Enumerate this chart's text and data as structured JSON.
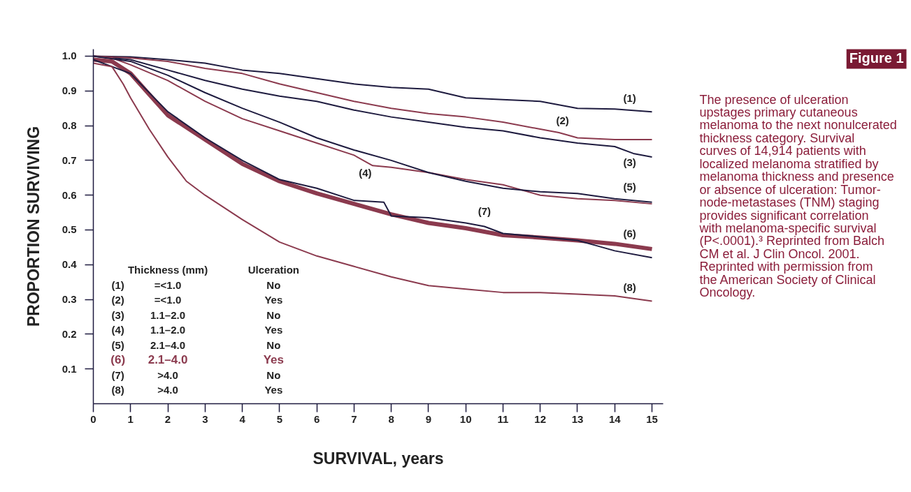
{
  "chart_data": {
    "type": "line",
    "title": "Figure 1",
    "xlabel": "SURVIVAL, years",
    "ylabel": "PROPORTION SURVIVING",
    "xlim": [
      0,
      15.3
    ],
    "ylim": [
      0,
      1.02
    ],
    "xticks": [
      0,
      1,
      2,
      3,
      4,
      5,
      6,
      7,
      8,
      9,
      10,
      11,
      12,
      13,
      14,
      15
    ],
    "yticks": [
      {
        "value": 0.1,
        "label": "0.1"
      },
      {
        "value": 0.2,
        "label": "0.2"
      },
      {
        "value": 0.3,
        "label": "0.3"
      },
      {
        "value": 0.4,
        "label": "0.4"
      },
      {
        "value": 0.5,
        "label": "0.5"
      },
      {
        "value": 0.6,
        "label": "0.6"
      },
      {
        "value": 0.7,
        "label": "0.7"
      },
      {
        "value": 0.8,
        "label": "0.8"
      },
      {
        "value": 0.9,
        "label": "0.9"
      },
      {
        "value": 1.0,
        "label": "1.0"
      }
    ],
    "grid": false,
    "marker": "none",
    "line_style": "solid",
    "series": [
      {
        "name": "(1)",
        "color": "#1e1b3f",
        "x": [
          0,
          1,
          2,
          3,
          4,
          5,
          6,
          7,
          8,
          9,
          10,
          11,
          12,
          13,
          14,
          15
        ],
        "values": [
          1.0,
          0.998,
          0.99,
          0.98,
          0.96,
          0.95,
          0.935,
          0.92,
          0.91,
          0.905,
          0.88,
          0.875,
          0.87,
          0.85,
          0.848,
          0.84
        ]
      },
      {
        "name": "(2)",
        "color": "#8b3a4e",
        "x": [
          0,
          1,
          2,
          3,
          4,
          5,
          6,
          7,
          8,
          9,
          10,
          11,
          12,
          12.5,
          13,
          14,
          15
        ],
        "values": [
          1.0,
          0.995,
          0.985,
          0.965,
          0.95,
          0.92,
          0.895,
          0.87,
          0.85,
          0.835,
          0.825,
          0.81,
          0.79,
          0.78,
          0.765,
          0.76,
          0.76
        ]
      },
      {
        "name": "(3)",
        "color": "#1e1b3f",
        "x": [
          0,
          1,
          2,
          3,
          4,
          5,
          6,
          7,
          8,
          9,
          10,
          11,
          12,
          13,
          14,
          14.5,
          15
        ],
        "values": [
          1.0,
          0.99,
          0.96,
          0.93,
          0.905,
          0.885,
          0.87,
          0.845,
          0.825,
          0.81,
          0.795,
          0.785,
          0.765,
          0.75,
          0.74,
          0.72,
          0.71
        ]
      },
      {
        "name": "(4)",
        "color": "#8b3a4e",
        "x": [
          0,
          0.5,
          1,
          2,
          3,
          4,
          5,
          6,
          7,
          7.5,
          8,
          9,
          10,
          11,
          12,
          13,
          14,
          15
        ],
        "values": [
          1.0,
          0.995,
          0.975,
          0.93,
          0.87,
          0.82,
          0.785,
          0.75,
          0.715,
          0.685,
          0.68,
          0.665,
          0.645,
          0.63,
          0.6,
          0.59,
          0.585,
          0.575
        ]
      },
      {
        "name": "(5)",
        "color": "#1e1b3f",
        "x": [
          0,
          1,
          2,
          3,
          4,
          5,
          6,
          7,
          8,
          9,
          10,
          11,
          12,
          13,
          14,
          15
        ],
        "values": [
          1.0,
          0.985,
          0.945,
          0.895,
          0.85,
          0.81,
          0.765,
          0.73,
          0.7,
          0.665,
          0.64,
          0.62,
          0.61,
          0.605,
          0.59,
          0.58
        ]
      },
      {
        "name": "(6)",
        "color": "#8b3a4e",
        "x": [
          0,
          0.5,
          1,
          1.5,
          2,
          3,
          4,
          5,
          6,
          7,
          8,
          9,
          10,
          11,
          12,
          13,
          14,
          15
        ],
        "values": [
          0.99,
          0.985,
          0.95,
          0.89,
          0.83,
          0.76,
          0.69,
          0.64,
          0.605,
          0.575,
          0.545,
          0.52,
          0.505,
          0.485,
          0.478,
          0.47,
          0.46,
          0.445
        ]
      },
      {
        "name": "(7)",
        "color": "#1e1b3f",
        "x": [
          0,
          1,
          2,
          3,
          4,
          5,
          6,
          7,
          7.8,
          8,
          9,
          10,
          10.5,
          11,
          12,
          13,
          13.5,
          14,
          15
        ],
        "values": [
          0.99,
          0.95,
          0.84,
          0.765,
          0.7,
          0.645,
          0.62,
          0.585,
          0.58,
          0.54,
          0.535,
          0.52,
          0.51,
          0.49,
          0.48,
          0.47,
          0.455,
          0.44,
          0.42
        ]
      },
      {
        "name": "(8)",
        "color": "#8b3a4e",
        "x": [
          0,
          0.5,
          0.8,
          1,
          1.5,
          2,
          2.5,
          3,
          4,
          5,
          6,
          7,
          8,
          9,
          10,
          11,
          12,
          13,
          14,
          15
        ],
        "values": [
          0.98,
          0.97,
          0.92,
          0.88,
          0.79,
          0.71,
          0.64,
          0.6,
          0.53,
          0.465,
          0.425,
          0.395,
          0.365,
          0.34,
          0.33,
          0.32,
          0.32,
          0.315,
          0.31,
          0.295
        ]
      }
    ],
    "annotations": [
      "Thickness (mm)",
      "Ulceration",
      "(1)",
      "=<1.0",
      "No",
      "(2)",
      "=<1.0",
      "Yes",
      "(3)",
      "1.1–2.0",
      "No",
      "(4)",
      "1.1–2.0",
      "Yes",
      "(5)",
      "2.1–4.0",
      "No",
      "(6)",
      "2.1–4.0",
      "Yes",
      "(7)",
      ">4.0",
      "No",
      "(8)",
      ">4.0",
      "Yes",
      "The presence of ulceration upstages primary cutaneous melanoma to the next nonulcerated thickness category. Survival curves of 14,914 patients with localized melanoma stratified by melanoma thickness and presence or absence of ulceration: Tumor-node-metastases (TNM) staging provides significant correlation with melanoma-specific survival (P<.0001).³ Reprinted from Balch CM et al. J Clin Oncol. 2001. Reprinted with permission from the American Society of Clinical Oncology."
    ]
  }
}
